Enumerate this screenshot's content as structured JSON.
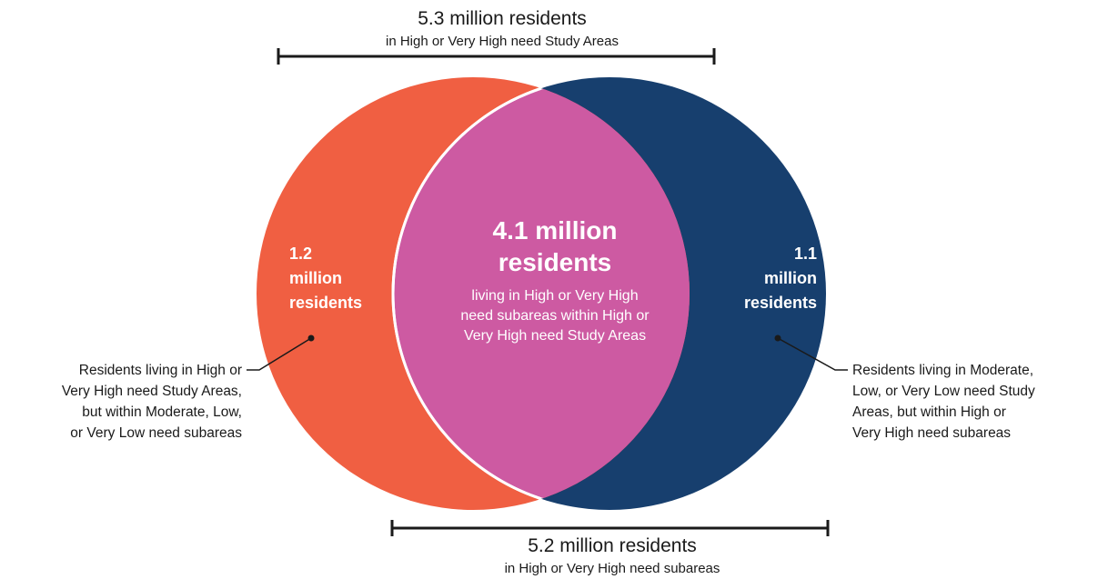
{
  "top_bracket": {
    "title": "5.3 million residents",
    "subtitle": "in High or Very High need Study Areas"
  },
  "bottom_bracket": {
    "title": "5.2 million residents",
    "subtitle": "in High or Very High need subareas"
  },
  "overlap": {
    "value_line1": "4.1 million",
    "value_line2": "residents",
    "desc_lines": [
      "living in High or Very High",
      "need subareas within High or",
      "Very High need Study Areas"
    ],
    "color": "#cd5aa2"
  },
  "left_set": {
    "value_lines": [
      "1.2",
      "million",
      "residents"
    ],
    "color": "#f05f42",
    "annotation_lines": [
      "Residents living in High or",
      "Very High need Study Areas,",
      "but within Moderate, Low,",
      "or Very Low need subareas"
    ]
  },
  "right_set": {
    "value_lines": [
      "1.1",
      "million",
      "residents"
    ],
    "color": "#173f6e",
    "annotation_lines": [
      "Residents living in Moderate,",
      "Low, or Very Low need Study",
      "Areas, but within High or",
      "Very High need subareas"
    ]
  }
}
